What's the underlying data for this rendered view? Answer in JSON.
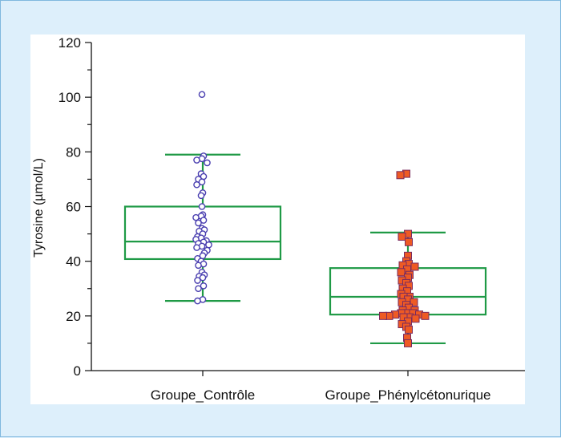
{
  "chart_data": {
    "type": "box",
    "ylabel": "Tyrosine (µmol/L)",
    "xlabel": "",
    "ylim": [
      0,
      120
    ],
    "yticks": [
      "0",
      "20",
      "40",
      "60",
      "80",
      "100",
      "120"
    ],
    "colors": {
      "box": "#1f9a46",
      "control_marker_edge": "#4a3fb0",
      "pku_marker_fill": "#ee5a24",
      "pku_marker_edge": "#7a2b5e",
      "plot_bg": "#ffffff",
      "page_bg": "#ddeffb"
    },
    "groups": [
      {
        "category": "Groupe_Contrôle",
        "marker": "circle",
        "whisker_low": 25.5,
        "q1": 40.8,
        "median": 47.2,
        "q3": 60,
        "whisker_high": 79,
        "points": [
          101,
          78.5,
          77.5,
          77,
          76,
          72,
          71,
          70,
          69,
          68,
          65,
          64,
          60,
          57,
          56.5,
          56,
          55,
          54,
          52,
          51.5,
          51,
          50,
          49,
          48.5,
          48,
          47.5,
          47,
          46.5,
          46,
          45.5,
          45,
          44,
          43,
          42,
          41,
          40,
          39,
          38.5,
          36,
          35,
          34.5,
          34,
          33,
          31,
          30,
          26,
          25.5
        ]
      },
      {
        "category": "Groupe_Phénylcétonurique",
        "marker": "square",
        "whisker_low": 10,
        "q1": 20.5,
        "median": 27,
        "q3": 37.5,
        "whisker_high": 50.5,
        "points": [
          72,
          71.5,
          50,
          49,
          47,
          42,
          40,
          39,
          38.5,
          38,
          37,
          36,
          35,
          34,
          33,
          32,
          31,
          30,
          29,
          28,
          27,
          27,
          26,
          25,
          25,
          24,
          23,
          22,
          22,
          21,
          21,
          21,
          20.5,
          20.5,
          20,
          20,
          20,
          19.5,
          19.5,
          19,
          18,
          17,
          16,
          15,
          12,
          10
        ]
      }
    ]
  }
}
